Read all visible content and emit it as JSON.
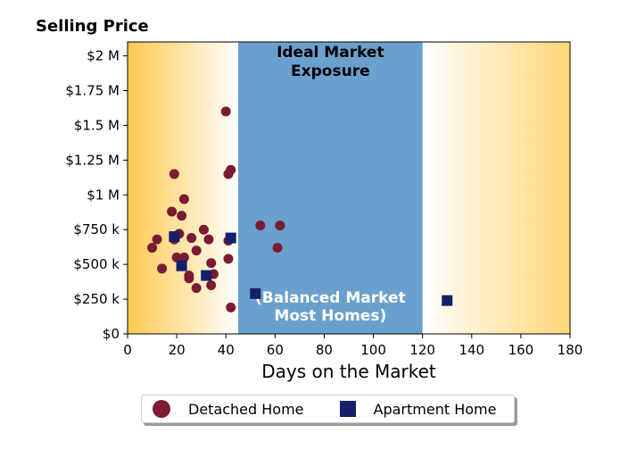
{
  "chart_data": {
    "type": "scatter",
    "title": "Selling Price",
    "xlabel": "Days on the Market",
    "ylabel": "",
    "xlim": [
      0,
      180
    ],
    "ylim": [
      0,
      2100000
    ],
    "x_ticks": [
      0,
      20,
      40,
      60,
      80,
      100,
      120,
      140,
      160,
      180
    ],
    "x_tick_labels": [
      "0",
      "20",
      "40",
      "60",
      "80",
      "100",
      "120",
      "140",
      "160",
      "180"
    ],
    "y_ticks": [
      0,
      250000,
      500000,
      750000,
      1000000,
      1250000,
      1500000,
      1750000,
      2000000
    ],
    "y_tick_labels": [
      "$0",
      "$250 k",
      "$500 k",
      "$750 k",
      "$1 M",
      "$1.25 M",
      "$1.5 M",
      "$1.75 M",
      "$2 M"
    ],
    "bands": [
      {
        "label": "Ideal Market Exposure",
        "x_range": [
          45,
          120
        ],
        "color": "#6aa0cd",
        "label_color": "#000000"
      },
      {
        "label": "(Balanced Market\nMost Homes)",
        "x_range": [
          45,
          120
        ],
        "color": "#6aa0cd",
        "label_color": "#ffffff"
      }
    ],
    "background_gradient": {
      "left_color": "#ffc94f",
      "mid_color": "#ffffff",
      "right_color": "#ffd677"
    },
    "legend_position": "bottom-center",
    "series": [
      {
        "name": "Detached Home",
        "marker": "circle",
        "color": "#7b1a33",
        "points": [
          [
            10,
            620000
          ],
          [
            12,
            680000
          ],
          [
            14,
            470000
          ],
          [
            18,
            880000
          ],
          [
            19,
            1150000
          ],
          [
            19,
            680000
          ],
          [
            20,
            550000
          ],
          [
            21,
            720000
          ],
          [
            22,
            850000
          ],
          [
            23,
            970000
          ],
          [
            23,
            550000
          ],
          [
            25,
            420000
          ],
          [
            25,
            400000
          ],
          [
            26,
            690000
          ],
          [
            28,
            600000
          ],
          [
            28,
            330000
          ],
          [
            31,
            750000
          ],
          [
            33,
            680000
          ],
          [
            34,
            350000
          ],
          [
            34,
            510000
          ],
          [
            35,
            430000
          ],
          [
            40,
            1600000
          ],
          [
            41,
            1150000
          ],
          [
            41,
            670000
          ],
          [
            41,
            540000
          ],
          [
            42,
            1180000
          ],
          [
            42,
            190000
          ],
          [
            54,
            780000
          ],
          [
            61,
            620000
          ],
          [
            62,
            780000
          ]
        ]
      },
      {
        "name": "Apartment Home",
        "marker": "square",
        "color": "#15206b",
        "points": [
          [
            19,
            700000
          ],
          [
            22,
            490000
          ],
          [
            32,
            420000
          ],
          [
            42,
            690000
          ],
          [
            52,
            290000
          ],
          [
            130,
            240000
          ]
        ]
      }
    ]
  }
}
